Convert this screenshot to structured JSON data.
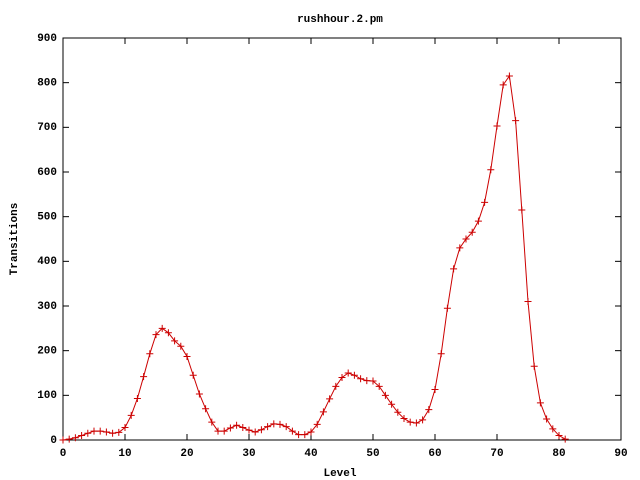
{
  "chart_data": {
    "type": "line",
    "title": "rushhour.2.pm",
    "x_label": "Level",
    "y_label": "Transitions",
    "x": [
      0,
      1,
      2,
      3,
      4,
      5,
      6,
      7,
      8,
      9,
      10,
      11,
      12,
      13,
      14,
      15,
      16,
      17,
      18,
      19,
      20,
      21,
      22,
      23,
      24,
      25,
      26,
      27,
      28,
      29,
      30,
      31,
      32,
      33,
      34,
      35,
      36,
      37,
      38,
      39,
      40,
      41,
      42,
      43,
      44,
      45,
      46,
      47,
      48,
      49,
      50,
      51,
      52,
      53,
      54,
      55,
      56,
      57,
      58,
      59,
      60,
      61,
      62,
      63,
      64,
      65,
      66,
      67,
      68,
      69,
      70,
      71,
      72,
      73,
      74,
      75,
      76,
      77,
      78,
      79,
      80,
      81
    ],
    "series": [
      {
        "color": "#cc0000",
        "values": [
          0,
          2,
          5,
          10,
          15,
          20,
          20,
          18,
          15,
          17,
          28,
          55,
          93,
          142,
          193,
          236,
          250,
          240,
          222,
          210,
          187,
          145,
          103,
          70,
          40,
          20,
          20,
          27,
          33,
          28,
          22,
          18,
          23,
          30,
          36,
          35,
          30,
          20,
          12,
          12,
          18,
          35,
          63,
          92,
          120,
          140,
          150,
          145,
          137,
          133,
          132,
          120,
          100,
          80,
          62,
          48,
          40,
          38,
          45,
          68,
          113,
          193,
          295,
          383,
          430,
          450,
          465,
          490,
          532,
          605,
          703,
          795,
          815,
          715,
          515,
          310,
          165,
          83,
          47,
          25,
          10,
          2
        ]
      }
    ],
    "xlim": [
      0,
      90
    ],
    "ylim": [
      0,
      900
    ],
    "xticks": [
      0,
      10,
      20,
      30,
      40,
      50,
      60,
      70,
      80,
      90
    ],
    "yticks": [
      0,
      100,
      200,
      300,
      400,
      500,
      600,
      700,
      800,
      900
    ]
  }
}
